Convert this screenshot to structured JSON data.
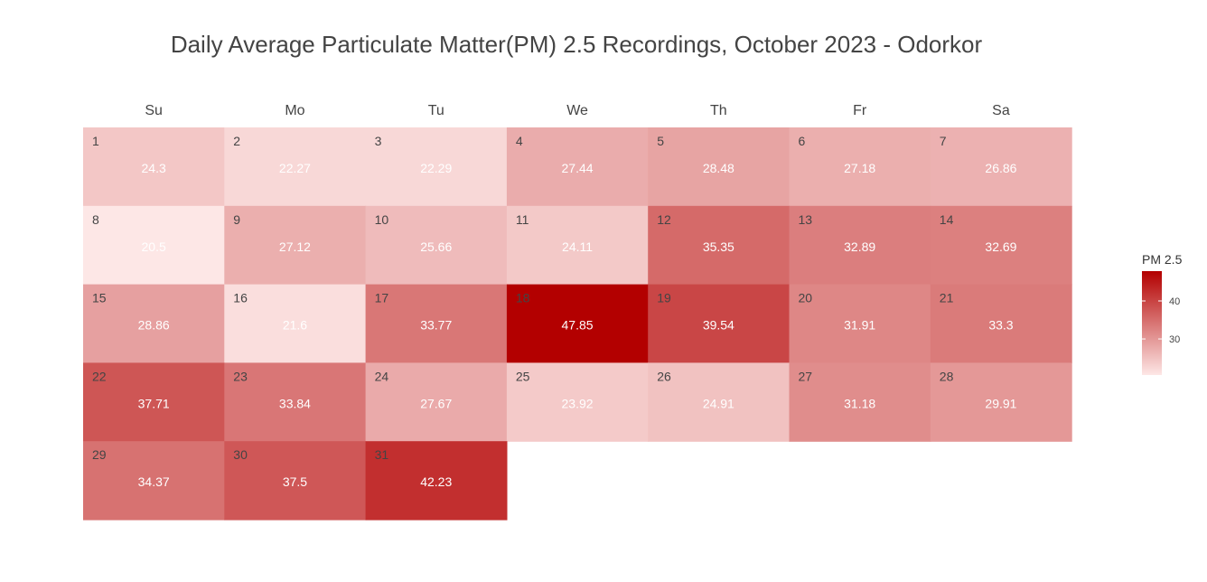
{
  "chart_data": {
    "type": "heatmap",
    "title": "Daily Average Particulate Matter(PM) 2.5 Recordings, October 2023 - Odorkor",
    "weekdays": [
      "Su",
      "Mo",
      "Tu",
      "We",
      "Th",
      "Fr",
      "Sa"
    ],
    "first_weekday_index": 0,
    "days": [
      1,
      2,
      3,
      4,
      5,
      6,
      7,
      8,
      9,
      10,
      11,
      12,
      13,
      14,
      15,
      16,
      17,
      18,
      19,
      20,
      21,
      22,
      23,
      24,
      25,
      26,
      27,
      28,
      29,
      30,
      31
    ],
    "values": [
      24.3,
      22.27,
      22.29,
      27.44,
      28.48,
      27.18,
      26.86,
      20.5,
      27.12,
      25.66,
      24.11,
      35.35,
      32.89,
      32.69,
      28.86,
      21.6,
      33.77,
      47.85,
      39.54,
      31.91,
      33.3,
      37.71,
      33.84,
      27.67,
      23.92,
      24.91,
      31.18,
      29.91,
      34.37,
      37.5,
      42.23
    ],
    "legend": {
      "title": "PM 2.5",
      "ticks": [
        30,
        40
      ],
      "range": [
        20.5,
        47.85
      ]
    },
    "colors": {
      "low": "#fde7e6",
      "high": "#b30000"
    }
  }
}
